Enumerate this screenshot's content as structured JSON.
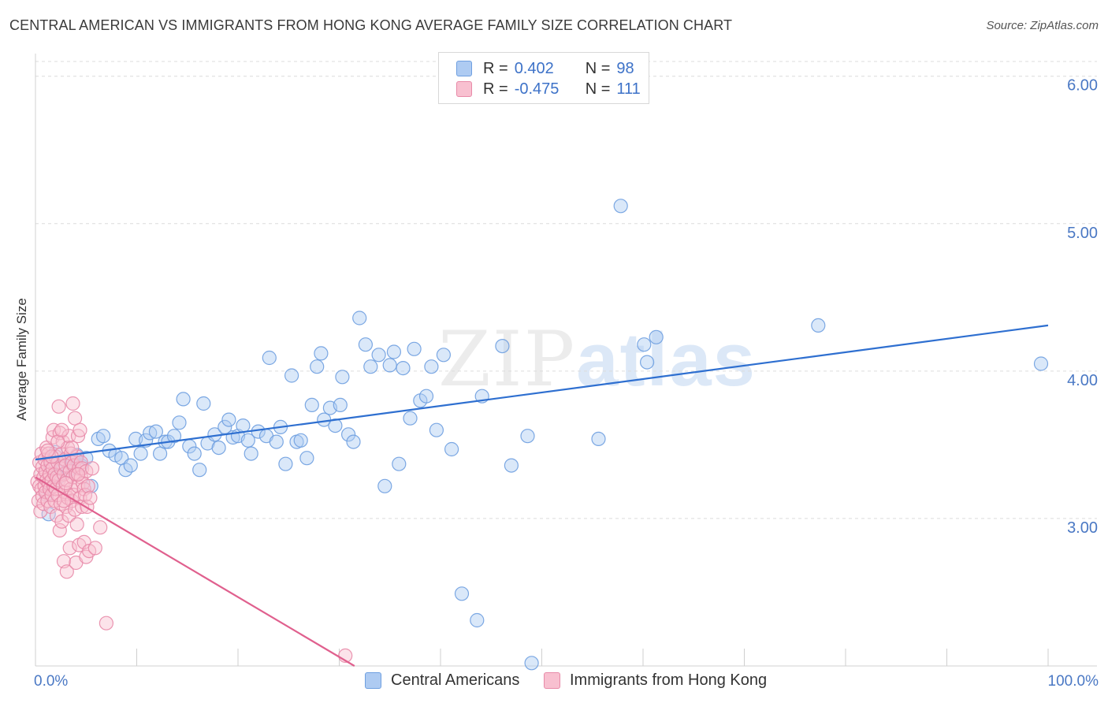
{
  "header": {
    "title": "CENTRAL AMERICAN VS IMMIGRANTS FROM HONG KONG AVERAGE FAMILY SIZE CORRELATION CHART",
    "source": "Source: ZipAtlas.com"
  },
  "watermark": {
    "zip": "ZIP",
    "atlas": "atlas"
  },
  "legend": {
    "rows": [
      {
        "r_label": "R =",
        "r_value": "0.402",
        "n_label": "N =",
        "n_value": "98",
        "color": "#aecbf2",
        "border": "#6e9fe0"
      },
      {
        "r_label": "R =",
        "r_value": "-0.475",
        "n_label": "N =",
        "n_value": "111",
        "color": "#f8c0d0",
        "border": "#e88aa8"
      }
    ]
  },
  "bottom_legend": {
    "series1": "Central Americans",
    "series2": "Immigrants from Hong Kong"
  },
  "chart_data": {
    "type": "scatter",
    "title": "CENTRAL AMERICAN VS IMMIGRANTS FROM HONG KONG AVERAGE FAMILY SIZE CORRELATION CHART",
    "xlabel": "",
    "ylabel": "Average Family Size",
    "xlim": [
      0,
      100
    ],
    "ylim": [
      2.0,
      6.1
    ],
    "x_tick_labels": [
      "0.0%",
      "100.0%"
    ],
    "y_ticks": [
      3.0,
      4.0,
      5.0,
      6.0
    ],
    "y_tick_labels": [
      "3.00",
      "4.00",
      "5.00",
      "6.00"
    ],
    "grid": true,
    "legend_position": "top-center",
    "series": [
      {
        "name": "Central Americans",
        "color": "#6e9fe0",
        "fill": "#aecbf2",
        "trend": {
          "x": [
            0,
            100
          ],
          "y": [
            3.4,
            4.31
          ]
        },
        "points": [
          [
            1.1,
            3.16
          ],
          [
            1.3,
            3.03
          ],
          [
            1.5,
            3.36
          ],
          [
            1.7,
            3.22
          ],
          [
            2.0,
            3.45
          ],
          [
            2.3,
            3.28
          ],
          [
            2.6,
            3.35
          ],
          [
            3.0,
            3.39
          ],
          [
            3.3,
            3.33
          ],
          [
            3.7,
            3.38
          ],
          [
            4.1,
            3.43
          ],
          [
            4.5,
            3.36
          ],
          [
            5.0,
            3.41
          ],
          [
            5.5,
            3.22
          ],
          [
            6.2,
            3.54
          ],
          [
            6.7,
            3.56
          ],
          [
            7.3,
            3.46
          ],
          [
            7.9,
            3.43
          ],
          [
            8.5,
            3.41
          ],
          [
            8.9,
            3.33
          ],
          [
            9.4,
            3.36
          ],
          [
            9.9,
            3.54
          ],
          [
            10.4,
            3.44
          ],
          [
            10.9,
            3.53
          ],
          [
            11.3,
            3.58
          ],
          [
            11.9,
            3.59
          ],
          [
            12.3,
            3.44
          ],
          [
            12.8,
            3.52
          ],
          [
            13.1,
            3.52
          ],
          [
            13.7,
            3.56
          ],
          [
            14.2,
            3.65
          ],
          [
            14.6,
            3.81
          ],
          [
            15.2,
            3.49
          ],
          [
            15.7,
            3.44
          ],
          [
            16.2,
            3.33
          ],
          [
            16.6,
            3.78
          ],
          [
            17.0,
            3.51
          ],
          [
            17.7,
            3.57
          ],
          [
            18.1,
            3.48
          ],
          [
            18.7,
            3.62
          ],
          [
            19.1,
            3.67
          ],
          [
            19.5,
            3.55
          ],
          [
            20.0,
            3.56
          ],
          [
            20.5,
            3.63
          ],
          [
            21.0,
            3.53
          ],
          [
            21.3,
            3.44
          ],
          [
            22.0,
            3.59
          ],
          [
            22.8,
            3.56
          ],
          [
            23.1,
            4.09
          ],
          [
            23.8,
            3.52
          ],
          [
            24.2,
            3.62
          ],
          [
            24.7,
            3.37
          ],
          [
            25.3,
            3.97
          ],
          [
            25.8,
            3.52
          ],
          [
            26.2,
            3.53
          ],
          [
            26.8,
            3.41
          ],
          [
            27.3,
            3.77
          ],
          [
            27.8,
            4.03
          ],
          [
            28.2,
            4.12
          ],
          [
            28.5,
            3.67
          ],
          [
            29.1,
            3.75
          ],
          [
            29.6,
            3.63
          ],
          [
            30.1,
            3.77
          ],
          [
            30.3,
            3.96
          ],
          [
            30.9,
            3.57
          ],
          [
            31.4,
            3.52
          ],
          [
            32.0,
            4.36
          ],
          [
            32.6,
            4.18
          ],
          [
            33.1,
            4.03
          ],
          [
            33.9,
            4.11
          ],
          [
            34.5,
            3.22
          ],
          [
            35.0,
            4.04
          ],
          [
            35.4,
            4.13
          ],
          [
            35.9,
            3.37
          ],
          [
            36.3,
            4.02
          ],
          [
            37.0,
            3.68
          ],
          [
            37.4,
            4.15
          ],
          [
            38.0,
            3.8
          ],
          [
            38.6,
            3.83
          ],
          [
            39.1,
            4.03
          ],
          [
            39.6,
            3.6
          ],
          [
            40.3,
            4.11
          ],
          [
            41.1,
            3.47
          ],
          [
            42.1,
            2.49
          ],
          [
            43.6,
            2.31
          ],
          [
            44.1,
            3.83
          ],
          [
            46.1,
            4.17
          ],
          [
            47.0,
            3.36
          ],
          [
            48.6,
            3.56
          ],
          [
            49.0,
            2.02
          ],
          [
            55.6,
            3.54
          ],
          [
            57.8,
            5.12
          ],
          [
            60.1,
            4.18
          ],
          [
            60.4,
            4.06
          ],
          [
            61.3,
            4.23
          ],
          [
            77.3,
            4.31
          ],
          [
            99.3,
            4.05
          ],
          [
            4.0,
            3.4
          ]
        ]
      },
      {
        "name": "Immigrants from Hong Kong",
        "color": "#e88aa8",
        "fill": "#f8c0d0",
        "trend": {
          "x": [
            0,
            31.5
          ],
          "y": [
            3.28,
            2.0
          ]
        },
        "points": [
          [
            0.2,
            3.25
          ],
          [
            0.3,
            3.12
          ],
          [
            0.4,
            3.38
          ],
          [
            0.4,
            3.22
          ],
          [
            0.5,
            3.3
          ],
          [
            0.5,
            3.05
          ],
          [
            0.6,
            3.2
          ],
          [
            0.6,
            3.44
          ],
          [
            0.7,
            3.15
          ],
          [
            0.7,
            3.35
          ],
          [
            0.8,
            3.28
          ],
          [
            0.8,
            3.1
          ],
          [
            0.9,
            3.4
          ],
          [
            0.9,
            3.22
          ],
          [
            1.0,
            3.32
          ],
          [
            1.0,
            3.18
          ],
          [
            1.1,
            3.48
          ],
          [
            1.1,
            3.26
          ],
          [
            1.2,
            3.12
          ],
          [
            1.2,
            3.36
          ],
          [
            1.3,
            3.24
          ],
          [
            1.3,
            3.44
          ],
          [
            1.4,
            3.2
          ],
          [
            1.4,
            3.3
          ],
          [
            1.5,
            3.08
          ],
          [
            1.5,
            3.38
          ],
          [
            1.6,
            3.26
          ],
          [
            1.6,
            3.16
          ],
          [
            1.7,
            3.55
          ],
          [
            1.7,
            3.34
          ],
          [
            1.8,
            3.22
          ],
          [
            1.8,
            3.6
          ],
          [
            1.9,
            3.3
          ],
          [
            1.9,
            3.12
          ],
          [
            2.0,
            3.42
          ],
          [
            2.0,
            3.2
          ],
          [
            2.1,
            3.28
          ],
          [
            2.1,
            3.02
          ],
          [
            2.2,
            3.38
          ],
          [
            2.2,
            3.16
          ],
          [
            2.3,
            3.76
          ],
          [
            2.3,
            3.26
          ],
          [
            2.4,
            2.92
          ],
          [
            2.4,
            3.58
          ],
          [
            2.5,
            3.34
          ],
          [
            2.5,
            3.1
          ],
          [
            2.6,
            3.44
          ],
          [
            2.6,
            2.98
          ],
          [
            2.7,
            3.22
          ],
          [
            2.7,
            3.52
          ],
          [
            2.8,
            3.3
          ],
          [
            2.8,
            2.71
          ],
          [
            2.9,
            3.18
          ],
          [
            2.9,
            3.4
          ],
          [
            3.0,
            3.08
          ],
          [
            3.0,
            3.36
          ],
          [
            3.1,
            3.26
          ],
          [
            3.1,
            2.64
          ],
          [
            3.2,
            3.48
          ],
          [
            3.2,
            3.14
          ],
          [
            3.3,
            3.56
          ],
          [
            3.3,
            3.02
          ],
          [
            3.4,
            3.32
          ],
          [
            3.4,
            2.8
          ],
          [
            3.5,
            3.2
          ],
          [
            3.5,
            3.44
          ],
          [
            3.6,
            3.12
          ],
          [
            3.6,
            3.38
          ],
          [
            3.7,
            3.28
          ],
          [
            3.7,
            3.78
          ],
          [
            3.8,
            3.16
          ],
          [
            3.8,
            3.36
          ],
          [
            3.9,
            3.68
          ],
          [
            3.9,
            3.06
          ],
          [
            4.0,
            3.3
          ],
          [
            4.0,
            2.7
          ],
          [
            4.1,
            3.42
          ],
          [
            4.1,
            2.96
          ],
          [
            4.2,
            3.22
          ],
          [
            4.2,
            3.56
          ],
          [
            4.3,
            3.34
          ],
          [
            4.3,
            2.82
          ],
          [
            4.4,
            3.14
          ],
          [
            4.4,
            3.6
          ],
          [
            4.5,
            3.38
          ],
          [
            4.5,
            3.28
          ],
          [
            4.6,
            3.08
          ],
          [
            4.6,
            3.34
          ],
          [
            4.7,
            3.24
          ],
          [
            4.8,
            3.2
          ],
          [
            4.8,
            2.84
          ],
          [
            4.9,
            3.16
          ],
          [
            5.0,
            3.32
          ],
          [
            5.0,
            2.74
          ],
          [
            5.1,
            3.08
          ],
          [
            5.2,
            3.22
          ],
          [
            5.3,
            2.78
          ],
          [
            5.4,
            3.14
          ],
          [
            5.6,
            3.34
          ],
          [
            5.9,
            2.8
          ],
          [
            6.4,
            2.94
          ],
          [
            7.0,
            2.29
          ],
          [
            30.6,
            2.07
          ],
          [
            2.2,
            3.52
          ],
          [
            2.6,
            3.6
          ],
          [
            3.0,
            3.24
          ],
          [
            1.6,
            3.42
          ],
          [
            1.2,
            3.46
          ],
          [
            3.6,
            3.48
          ],
          [
            2.8,
            3.12
          ],
          [
            4.2,
            3.3
          ]
        ]
      }
    ]
  }
}
